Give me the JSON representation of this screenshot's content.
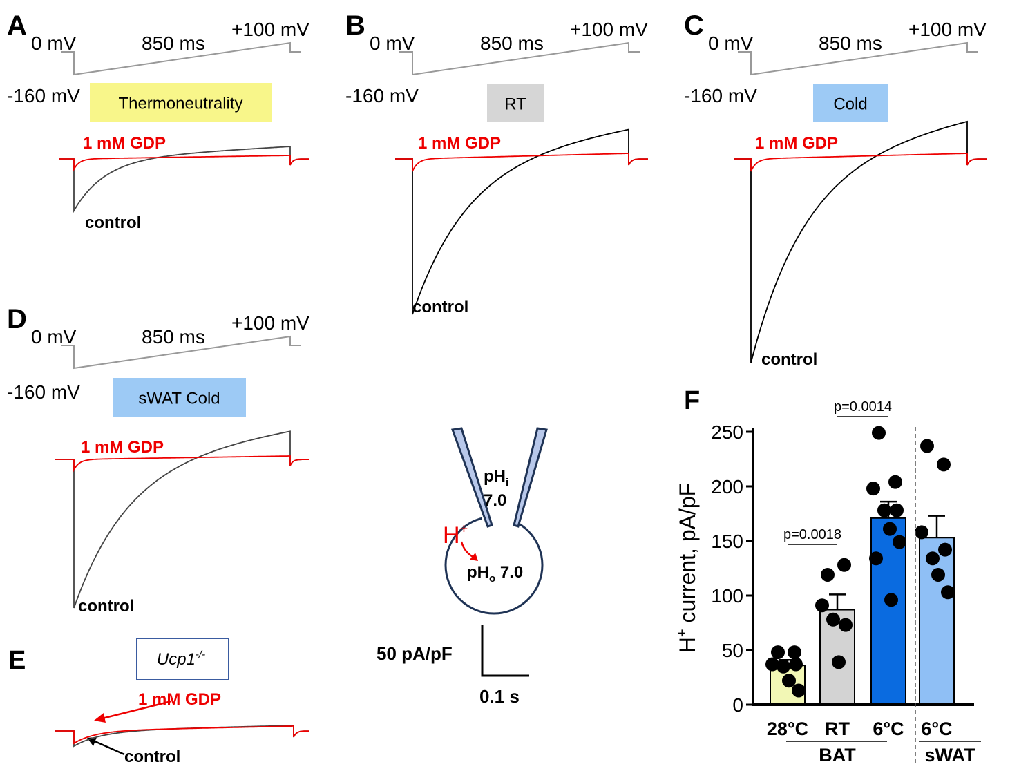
{
  "panels": [
    {
      "letter": "A",
      "protocol": {
        "start": "0 mV",
        "duration": "850 ms",
        "end": "+100 mV",
        "hold": "-160 mV"
      },
      "condition": "Thermoneutrality",
      "drug": "1 mM GDP",
      "control": "control"
    },
    {
      "letter": "B",
      "protocol": {
        "start": "0 mV",
        "duration": "850 ms",
        "end": "+100 mV",
        "hold": "-160 mV"
      },
      "condition": "RT",
      "drug": "1 mM GDP",
      "control": "control"
    },
    {
      "letter": "C",
      "protocol": {
        "start": "0 mV",
        "duration": "850 ms",
        "end": "+100 mV",
        "hold": "-160 mV"
      },
      "condition": "Cold",
      "drug": "1 mM GDP",
      "control": "control"
    },
    {
      "letter": "D",
      "protocol": {
        "start": "0 mV",
        "duration": "850 ms",
        "end": "+100 mV",
        "hold": "-160 mV"
      },
      "condition": "sWAT Cold",
      "drug": "1 mM GDP",
      "control": "control"
    }
  ],
  "panel_e": {
    "letter": "E",
    "genotype": {
      "main": "Ucp1",
      "sup": "-/-"
    },
    "drug": "1 mM GDP",
    "control": "control"
  },
  "scale_bar": {
    "current": "50 pA/pF",
    "time": "0.1 s"
  },
  "diagram": {
    "pipette": {
      "main": "pH",
      "sub": "i",
      "value": "7.0"
    },
    "ion": {
      "main": "H",
      "sup": "+"
    },
    "bath": {
      "main": "pH",
      "sub": "o",
      "value": " 7.0"
    }
  },
  "chart_data": {
    "type": "bar",
    "label": "F",
    "ylabel": {
      "main": "H",
      "sup": "+",
      "rest": " current, pA/pF"
    },
    "categories": [
      "28°C",
      "RT",
      "6°C",
      "6°C"
    ],
    "groups": [
      "BAT",
      "sWAT"
    ],
    "values": [
      36,
      87,
      171,
      153
    ],
    "errors": [
      5,
      14,
      15,
      20
    ],
    "colors": [
      "#f2f7b5",
      "#d3d3d3",
      "#0a6be0",
      "#8fbff5"
    ],
    "points": [
      [
        48,
        48,
        37,
        37,
        35,
        22,
        13
      ],
      [
        119,
        128,
        91,
        73,
        78,
        39
      ],
      [
        249,
        204,
        198,
        178,
        178,
        161,
        149,
        134,
        96
      ],
      [
        237,
        220,
        158,
        142,
        134,
        119,
        103
      ]
    ],
    "annotations": [
      "p=0.0018",
      "p=0.0014"
    ],
    "ylim": [
      0,
      250
    ],
    "yticks": [
      0,
      50,
      100,
      150,
      200,
      250
    ]
  }
}
